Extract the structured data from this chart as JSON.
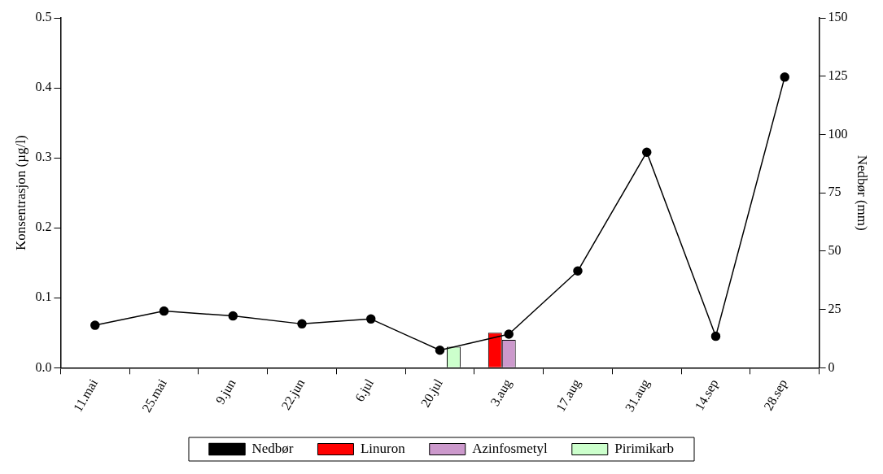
{
  "chart_data": {
    "type": "bar",
    "ylabel": "Konsentrasjon (µg/l)",
    "y2label": "Nedbør (mm)",
    "categories": [
      "11.mai",
      "25.mai",
      "9.jun",
      "22.jun",
      "6.jul",
      "20.jul",
      "3.aug",
      "17.aug",
      "31.aug",
      "14.sep",
      "28.sep"
    ],
    "series": [
      {
        "name": "Linuron",
        "color": "#ff0000",
        "values": [
          null,
          null,
          null,
          null,
          null,
          null,
          0.05,
          null,
          null,
          null,
          null
        ]
      },
      {
        "name": "Azinfosmetyl",
        "color": "#cc99cc",
        "values": [
          null,
          null,
          null,
          null,
          null,
          null,
          0.04,
          null,
          null,
          null,
          null
        ]
      },
      {
        "name": "Pirimikarb",
        "color": "#ccffcc",
        "values": [
          null,
          null,
          null,
          null,
          null,
          0.03,
          null,
          null,
          null,
          null,
          null
        ]
      },
      {
        "name": "Nedbør",
        "type": "line",
        "axis": "y2",
        "color": "#000000",
        "marker": "circle",
        "values": [
          18.2,
          24.3,
          22.2,
          18.8,
          20.9,
          7.5,
          14.4,
          41.5,
          92.4,
          13.5,
          124.6
        ]
      }
    ],
    "ylim": [
      0,
      0.5
    ],
    "yticks": [
      {
        "value": 0,
        "label": "0.0"
      },
      0.1,
      0.2,
      0.3,
      0.4,
      0.5
    ],
    "y2lim": [
      0,
      150
    ],
    "y2ticks": [
      0,
      25,
      50,
      75,
      100,
      125,
      150
    ],
    "grid": false,
    "legend": "bottom"
  }
}
